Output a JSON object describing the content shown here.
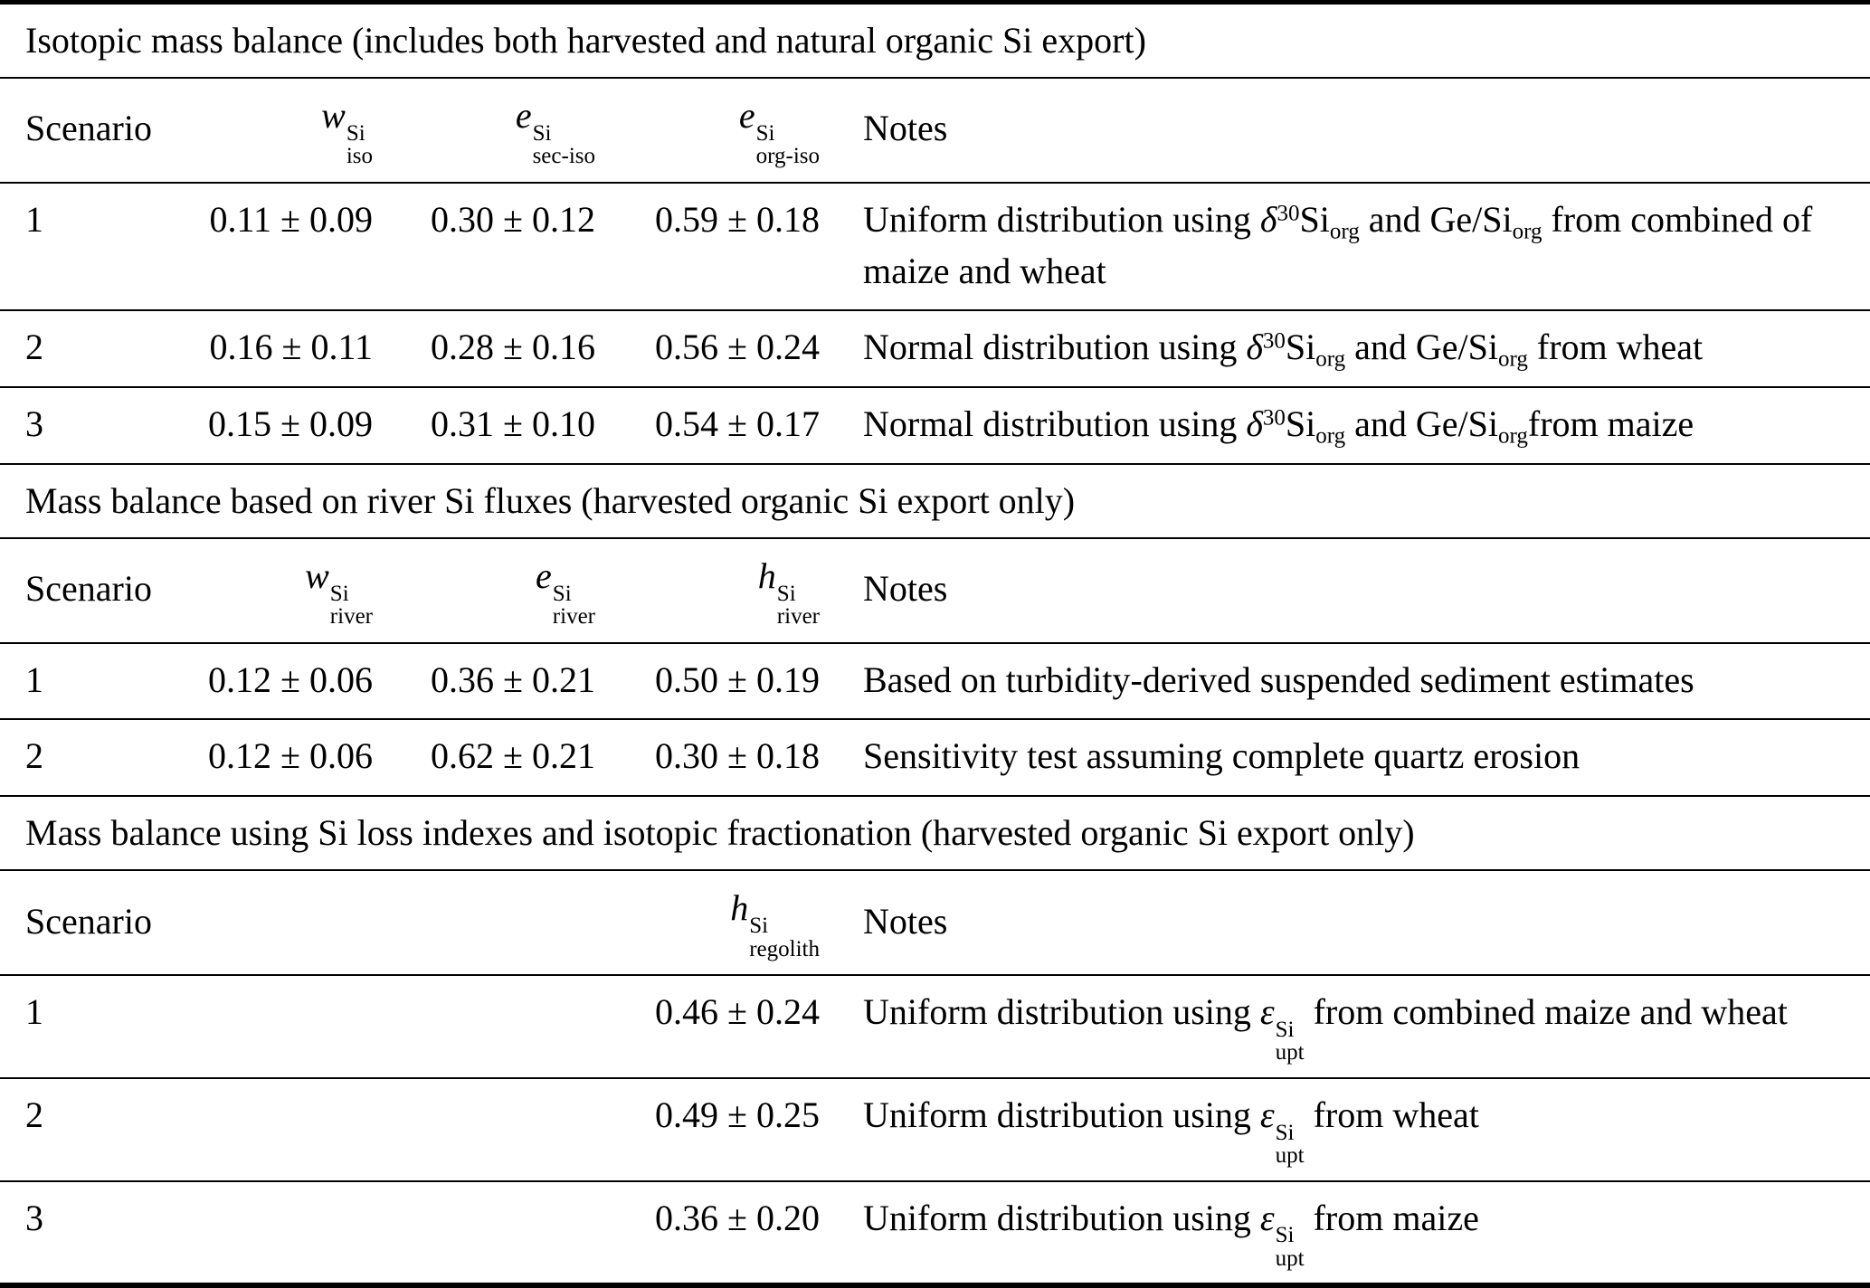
{
  "table": {
    "sections": [
      {
        "title": "Isotopic mass balance (includes both harvested and natural organic Si export)",
        "columns": {
          "scenario": "Scenario",
          "col2": [
            {
              "t": "i",
              "v": "w"
            },
            {
              "t": "ss",
              "sup": "Si",
              "sub": "iso"
            }
          ],
          "col3": [
            {
              "t": "i",
              "v": "e"
            },
            {
              "t": "ss",
              "sup": "Si",
              "sub": "sec-iso"
            }
          ],
          "col4": [
            {
              "t": "i",
              "v": "e"
            },
            {
              "t": "ss",
              "sup": "Si",
              "sub": "org-iso"
            }
          ],
          "notes": "Notes"
        },
        "rows": [
          {
            "scenario": "1",
            "v1": "0.11 ± 0.09",
            "v2": "0.30 ± 0.12",
            "v3": "0.59 ± 0.18",
            "note": [
              {
                "t": "txt",
                "v": "Uniform distribution using "
              },
              {
                "t": "i",
                "v": "δ"
              },
              {
                "t": "sup",
                "v": "30"
              },
              {
                "t": "txt",
                "v": "Si"
              },
              {
                "t": "sub",
                "v": "org"
              },
              {
                "t": "txt",
                "v": " and Ge/Si"
              },
              {
                "t": "sub",
                "v": "org"
              },
              {
                "t": "txt",
                "v": " from combined of maize and wheat"
              }
            ]
          },
          {
            "scenario": "2",
            "v1": "0.16 ± 0.11",
            "v2": "0.28 ± 0.16",
            "v3": "0.56 ± 0.24",
            "note": [
              {
                "t": "txt",
                "v": "Normal distribution using "
              },
              {
                "t": "i",
                "v": "δ"
              },
              {
                "t": "sup",
                "v": "30"
              },
              {
                "t": "txt",
                "v": "Si"
              },
              {
                "t": "sub",
                "v": "org"
              },
              {
                "t": "txt",
                "v": " and Ge/Si"
              },
              {
                "t": "sub",
                "v": "org"
              },
              {
                "t": "txt",
                "v": " from wheat"
              }
            ]
          },
          {
            "scenario": "3",
            "v1": "0.15 ± 0.09",
            "v2": "0.31 ± 0.10",
            "v3": "0.54 ± 0.17",
            "note": [
              {
                "t": "txt",
                "v": "Normal distribution using "
              },
              {
                "t": "i",
                "v": "δ"
              },
              {
                "t": "sup",
                "v": "30"
              },
              {
                "t": "txt",
                "v": "Si"
              },
              {
                "t": "sub",
                "v": "org"
              },
              {
                "t": "txt",
                "v": " and Ge/Si"
              },
              {
                "t": "sub",
                "v": "org"
              },
              {
                "t": "txt",
                "v": "from maize"
              }
            ]
          }
        ]
      },
      {
        "title": "Mass balance based on river Si fluxes (harvested organic Si export only)",
        "columns": {
          "scenario": "Scenario",
          "col2": [
            {
              "t": "i",
              "v": "w"
            },
            {
              "t": "ss",
              "sup": "Si",
              "sub": "river"
            }
          ],
          "col3": [
            {
              "t": "i",
              "v": "e"
            },
            {
              "t": "ss",
              "sup": "Si",
              "sub": "river"
            }
          ],
          "col4": [
            {
              "t": "i",
              "v": "h"
            },
            {
              "t": "ss",
              "sup": "Si",
              "sub": "river"
            }
          ],
          "notes": "Notes"
        },
        "rows": [
          {
            "scenario": "1",
            "v1": "0.12 ± 0.06",
            "v2": "0.36 ± 0.21",
            "v3": "0.50 ± 0.19",
            "note": [
              {
                "t": "txt",
                "v": "Based on turbidity-derived suspended sediment estimates"
              }
            ]
          },
          {
            "scenario": "2",
            "v1": "0.12 ± 0.06",
            "v2": "0.62 ± 0.21",
            "v3": "0.30 ± 0.18",
            "note": [
              {
                "t": "txt",
                "v": "Sensitivity test assuming complete quartz erosion"
              }
            ]
          }
        ]
      },
      {
        "title": "Mass balance using Si loss indexes and isotopic fractionation (harvested organic Si export only)",
        "columns": {
          "scenario": "Scenario",
          "col2": [],
          "col3": [],
          "col4": [
            {
              "t": "i",
              "v": "h"
            },
            {
              "t": "ss",
              "sup": "Si",
              "sub": "regolith"
            }
          ],
          "notes": "Notes"
        },
        "rows": [
          {
            "scenario": "1",
            "v1": "",
            "v2": "",
            "v3": "0.46 ± 0.24",
            "note": [
              {
                "t": "txt",
                "v": "Uniform distribution using "
              },
              {
                "t": "i",
                "v": "ε"
              },
              {
                "t": "ss",
                "sup": "Si",
                "sub": "upt"
              },
              {
                "t": "txt",
                "v": " from combined maize and wheat"
              }
            ]
          },
          {
            "scenario": "2",
            "v1": "",
            "v2": "",
            "v3": "0.49 ± 0.25",
            "note": [
              {
                "t": "txt",
                "v": "Uniform distribution using "
              },
              {
                "t": "i",
                "v": "ε"
              },
              {
                "t": "ss",
                "sup": "Si",
                "sub": "upt"
              },
              {
                "t": "txt",
                "v": " from wheat"
              }
            ]
          },
          {
            "scenario": "3",
            "v1": "",
            "v2": "",
            "v3": "0.36 ± 0.20",
            "note": [
              {
                "t": "txt",
                "v": "Uniform distribution using "
              },
              {
                "t": "i",
                "v": "ε"
              },
              {
                "t": "ss",
                "sup": "Si",
                "sub": "upt"
              },
              {
                "t": "txt",
                "v": " from maize"
              }
            ]
          }
        ]
      }
    ]
  }
}
